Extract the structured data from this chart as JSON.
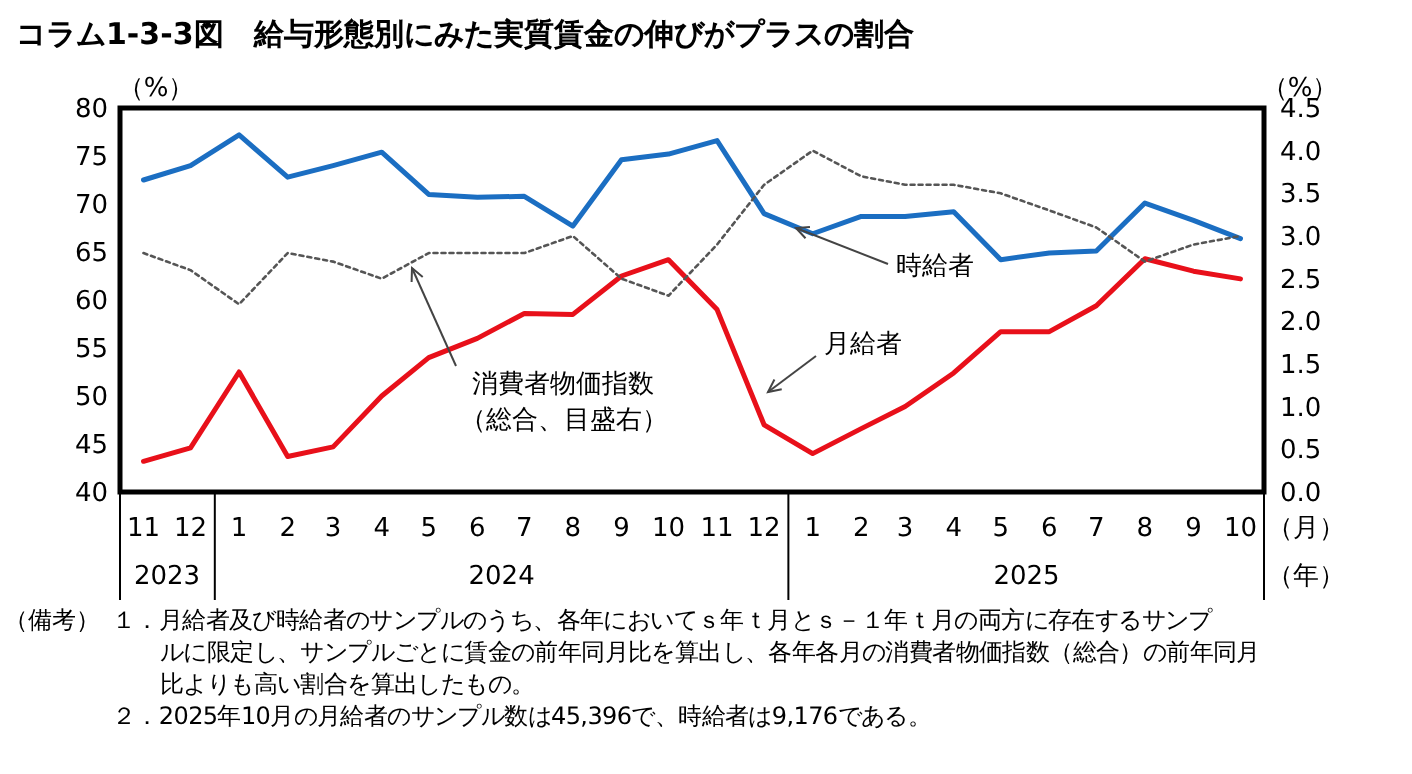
{
  "chart_data": {
    "type": "line",
    "title": "コラム1-3-3図　給与形態別にみた実質賃金の伸びがプラスの割合",
    "x": [
      "2023-11",
      "2023-12",
      "2024-01",
      "2024-02",
      "2024-03",
      "2024-04",
      "2024-05",
      "2024-06",
      "2024-07",
      "2024-08",
      "2024-09",
      "2024-10",
      "2024-11",
      "2024-12",
      "2025-01",
      "2025-02",
      "2025-03",
      "2025-04",
      "2025-05",
      "2025-06",
      "2025-07",
      "2025-08",
      "2025-09",
      "2025-10"
    ],
    "xlim": [
      "2023-10-17",
      "2025-10-16"
    ],
    "xticks": [
      {
        "value": "2023-11",
        "label": "11"
      },
      {
        "value": "2023-12",
        "label": "12"
      },
      {
        "value": "2024-01",
        "label": "1"
      },
      {
        "value": "2024-02",
        "label": "2"
      },
      {
        "value": "2024-03",
        "label": "3"
      },
      {
        "value": "2024-04",
        "label": "4"
      },
      {
        "value": "2024-05",
        "label": "5"
      },
      {
        "value": "2024-06",
        "label": "6"
      },
      {
        "value": "2024-07",
        "label": "7"
      },
      {
        "value": "2024-08",
        "label": "8"
      },
      {
        "value": "2024-09",
        "label": "9"
      },
      {
        "value": "2024-10",
        "label": "10"
      },
      {
        "value": "2024-11",
        "label": "11"
      },
      {
        "value": "2024-12",
        "label": "12"
      },
      {
        "value": "2025-01",
        "label": "1"
      },
      {
        "value": "2025-02",
        "label": "2"
      },
      {
        "value": "2025-03",
        "label": "3"
      },
      {
        "value": "2025-04",
        "label": "4"
      },
      {
        "value": "2025-05",
        "label": "5"
      },
      {
        "value": "2025-06",
        "label": "6"
      },
      {
        "value": "2025-07",
        "label": "7"
      },
      {
        "value": "2025-08",
        "label": "8"
      },
      {
        "value": "2025-09",
        "label": "9"
      },
      {
        "value": "2025-10",
        "label": "10"
      }
    ],
    "xlabel": "（月）",
    "ylabel": "（%）",
    "y2label": "（%）",
    "ylim": [
      40,
      80
    ],
    "yticks": [
      40,
      45,
      50,
      55,
      60,
      65,
      70,
      75,
      80
    ],
    "y2lim": [
      0,
      4.5
    ],
    "y2ticks": [
      {
        "value": 0,
        "label": "0.0"
      },
      0.5,
      {
        "value": 1,
        "label": "1.0"
      },
      1.5,
      {
        "value": 2,
        "label": "2.0"
      },
      2.5,
      {
        "value": 3,
        "label": "3.0"
      },
      3.5,
      {
        "value": 4,
        "label": "4.0"
      },
      4.5
    ],
    "series": [
      {
        "name": "月給者",
        "color": "#e8101a",
        "values": [
          43.2,
          44.6,
          52.5,
          43.7,
          44.7,
          50.0,
          54.0,
          56.0,
          58.6,
          58.5,
          62.5,
          64.2,
          59.0,
          47.0,
          44.0,
          46.6,
          48.9,
          52.4,
          56.7,
          56.7,
          59.4,
          64.3,
          63.0,
          62.2
        ]
      },
      {
        "name": "時給者",
        "color": "#1b6ec2",
        "values": [
          72.5,
          74.0,
          77.2,
          72.8,
          74.0,
          75.4,
          71.0,
          70.7,
          70.8,
          67.7,
          74.6,
          75.2,
          76.6,
          69.0,
          66.9,
          68.7,
          68.7,
          69.2,
          64.2,
          64.9,
          65.1,
          70.1,
          68.3,
          66.4
        ]
      },
      {
        "name": "消費者物価指数（総合、目盛右）",
        "color": "#555555",
        "axis": "y2",
        "line_style": "dotted",
        "values": [
          2.8,
          2.6,
          2.2,
          2.8,
          2.7,
          2.5,
          2.8,
          2.8,
          2.8,
          3.0,
          2.5,
          2.3,
          2.9,
          3.6,
          4.0,
          3.7,
          3.6,
          3.6,
          3.5,
          3.3,
          3.1,
          2.7,
          2.9,
          3.0
        ]
      }
    ],
    "annotations": [
      "（年）",
      "（備考）",
      "１．月給者及び時給者のサンプルのうち、各年においてｓ年ｔ月とｓ－１年ｔ月の両方に存在するサンプルに限定し、サンプルごとに賃金の前年同月比を算出し、各年各月の消費者物価指数（総合）の前年同月比よりも高い割合を算出したもの。",
      "２．2025年10月の月給者のサンプル数は45,396で、時給者は9,176である。",
      "2023",
      "2024",
      "2025"
    ]
  }
}
